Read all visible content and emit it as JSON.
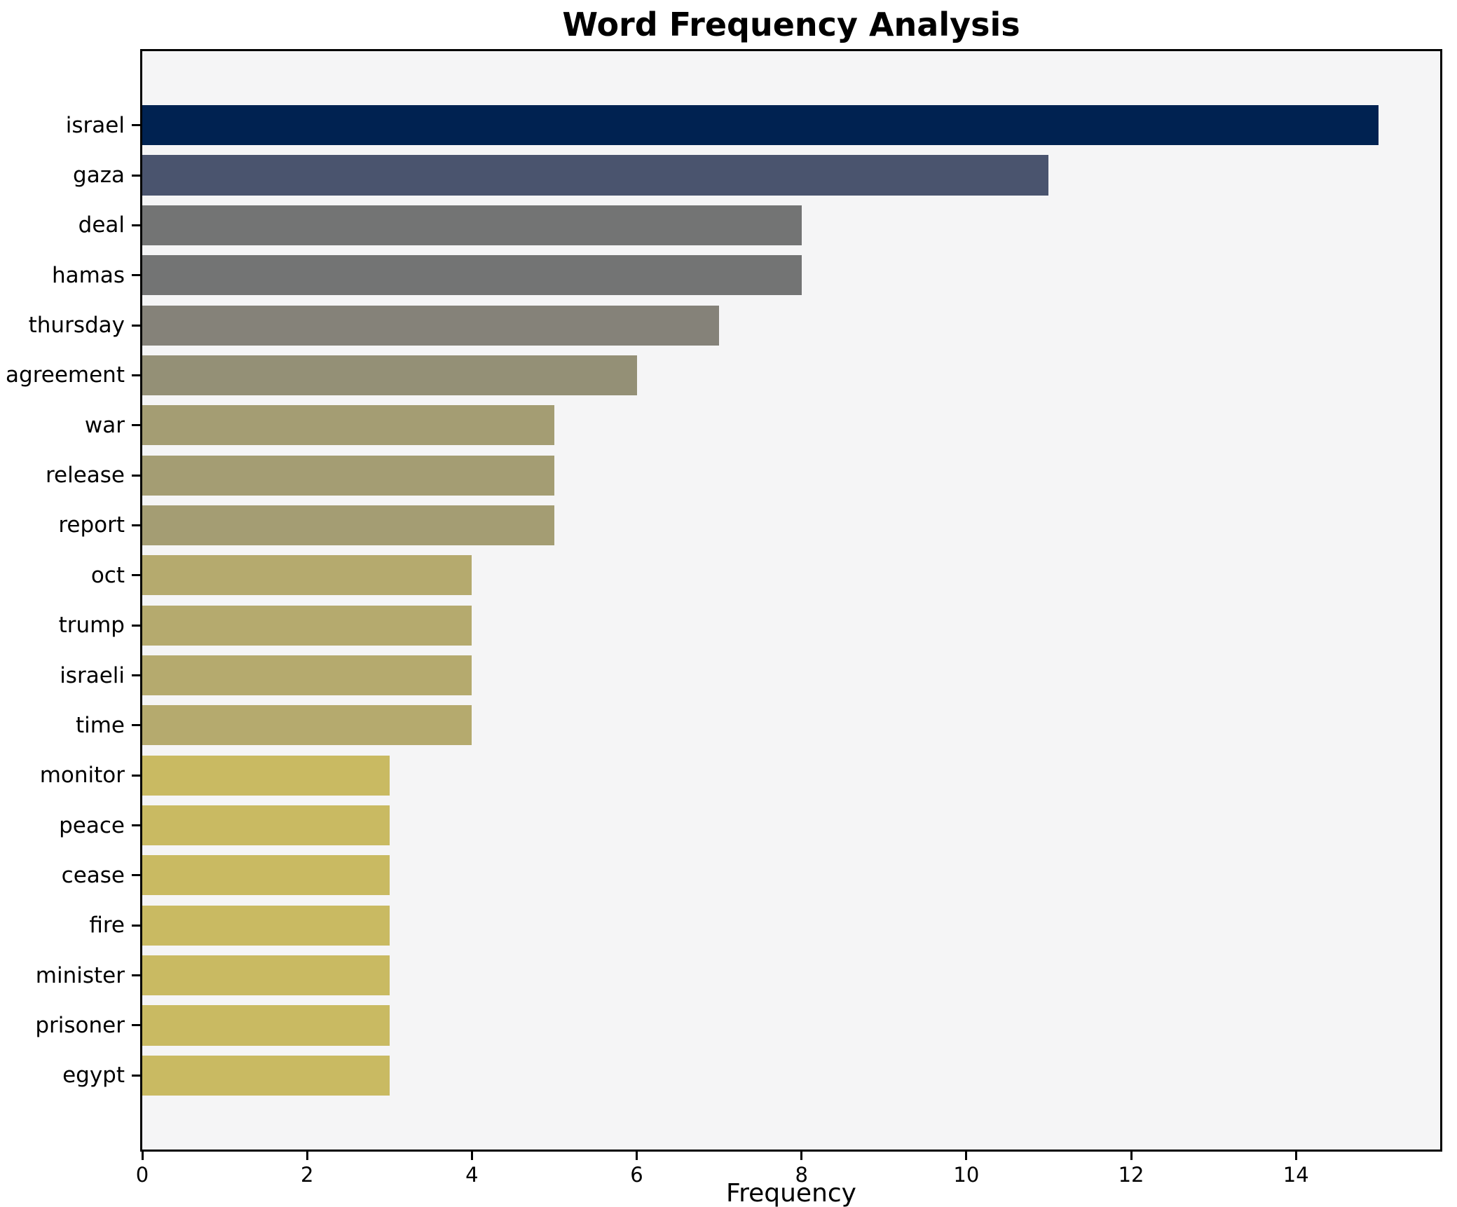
{
  "chart_data": {
    "type": "bar",
    "orientation": "horizontal",
    "title": "Word Frequency Analysis",
    "xlabel": "Frequency",
    "ylabel": "",
    "categories": [
      "israel",
      "gaza",
      "deal",
      "hamas",
      "thursday",
      "agreement",
      "war",
      "release",
      "report",
      "oct",
      "trump",
      "israeli",
      "time",
      "monitor",
      "peace",
      "cease",
      "fire",
      "minister",
      "prisoner",
      "egypt"
    ],
    "values": [
      15,
      11,
      8,
      8,
      7,
      6,
      5,
      5,
      5,
      4,
      4,
      4,
      4,
      3,
      3,
      3,
      3,
      3,
      3,
      3
    ],
    "bar_colors": [
      "#002251",
      "#4a546e",
      "#737474",
      "#737474",
      "#858279",
      "#949076",
      "#a49d73",
      "#a49d73",
      "#a49d73",
      "#b5aa6e",
      "#b5aa6e",
      "#b5aa6e",
      "#b5aa6e",
      "#c9ba62",
      "#c9ba62",
      "#c9ba62",
      "#c9ba62",
      "#c9ba62",
      "#c9ba62",
      "#c9ba62"
    ],
    "xlim": [
      0,
      15.75
    ],
    "xticks": [
      0,
      2,
      4,
      6,
      8,
      10,
      12,
      14
    ],
    "grid": false,
    "legend": false,
    "plot_background": "#f5f5f6",
    "figure_background": "#ffffff",
    "spine_color": "#000000",
    "text_color": "#000000",
    "bar_height_fraction": 0.8
  }
}
